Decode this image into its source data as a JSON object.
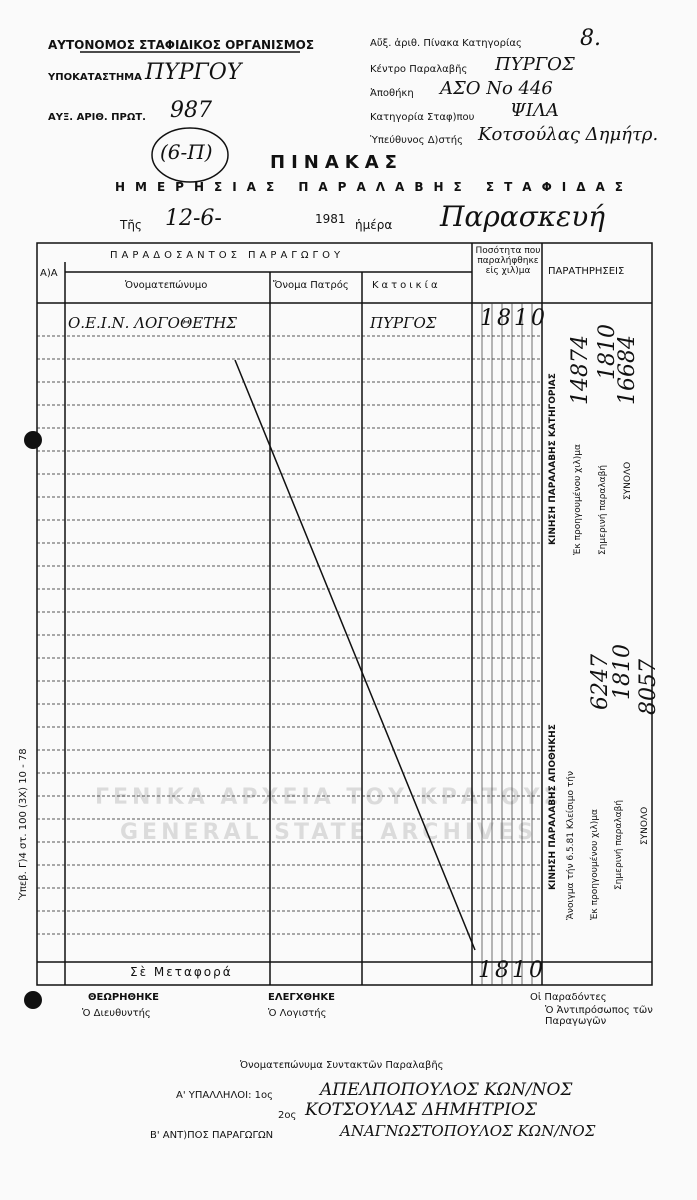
{
  "header": {
    "organization": "ΑΥΤΟΝΟΜΟΣ ΣΤΑΦΙΔΙΚΟΣ ΟΡΓΑΝΙΣΜΟΣ",
    "branch": {
      "label": "ΥΠΟΚΑΤΑΣΤΗΜΑ",
      "value": "ΠΥΡΓΟΥ"
    },
    "protocol": {
      "label": "ΑΥΞ. ΑΡΙΘ. ΠΡΩΤ.",
      "value": "987",
      "note": "(6-Π)"
    },
    "right": [
      {
        "label": "Αὔξ. ἀριθ. Πίνακα Κατηγορίας",
        "value": "8."
      },
      {
        "label": "Κέντρο Παραλαβῆς",
        "value": "ΠΥΡΓΟΣ"
      },
      {
        "label": "Ἀποθήκη",
        "value": "ΑΣΟ Νο 446"
      },
      {
        "label": "Κατηγορία Σταφ)που",
        "value": "ΨΙΛΑ"
      },
      {
        "label": "Ὑπεύθυνος Δ)στής",
        "value": "Κοτσούλας Δημήτρ."
      }
    ]
  },
  "title": {
    "main": "ΠΙΝΑΚΑΣ",
    "sub": "ΗΜΕΡΗΣΙΑΣ ΠΑΡΑΛΑΒΗΣ ΣΤΑΦΙΔΑΣ",
    "date_label": "Τῆς",
    "date": "12-6-",
    "year": "1981",
    "day_label": "ἡμέρα",
    "day": "Παρασκευή"
  },
  "table": {
    "headers": [
      "Α)Α",
      "ΠΑΡΑΔΟΣΑΝΤΟΣ ΠΑΡΑΓΩΓΟΥ",
      "Ὀνοματεπώνυμο",
      "Ὄνομα Πατρός",
      "Κατοικία",
      "Ποσότητα που παραλήφθηκε εἰς χιλ)μα",
      "ΠΑΡΑΤΗΡΗΣΕΙΣ"
    ],
    "rows": [
      [
        "Ο.Ε.Ι.Ν. ΛΟΓΟΘΕΤΗΣ",
        "ΠΥΡΓΟΣ",
        "1810"
      ]
    ]
  },
  "side": {
    "category": {
      "title": "ΚΙΝΗΣΗ ΠΑΡΑΛΑΒΗΣ ΚΑΤΗΓΟΡΙΑΣ",
      "prev_label": "Ἐκ προηγουμένου χιλ)μα",
      "prev": "14874",
      "today_label": "Σημερινή παραλαβή",
      "today": "1810",
      "total_label": "ΣΥΝΟΛΟ",
      "total": "16684"
    },
    "warehouse": {
      "title": "ΚΙΝΗΣΗ ΠΑΡΑΛΑΒΗΣ ΑΠΟΘΗΚΗΣ",
      "opening_label": "Ἄνοιγμα τήν 6.5.81 Κλείσιμο τήν",
      "prev_label": "Ἐκ προηγουμένου χιλ)μα",
      "prev": "6247",
      "today_label": "Σημερινή παραλαβή",
      "today": "1810",
      "total_label": "ΣΥΝΟΛΟ",
      "total": "8057"
    }
  },
  "margin_code": "Ὑπεβ. Γ)4 στ. 100 (3X) 10 - 78",
  "watermark": [
    "ΓΕΝΙΚΑ ΑΡΧΕΙΑ ΤΟΥ ΚΡΑΤΟΥΣ",
    "GENERAL STATE ARCHIVES"
  ],
  "footer": {
    "carry_label": "Σὲ Μεταφορά",
    "carry": "1810",
    "approved": "ΘΕΩΡΗΘΗΚΕ",
    "director": "Ὁ Διευθυντής",
    "checked": "ΕΛΕΓΧΘΗΚΕ",
    "accountant": "Ὁ Λογιστής",
    "deliverers": "Οἱ Παραδόντες",
    "representative": "Ὁ Ἀντιπρόσωπος τῶν Παραγωγῶν",
    "compilers": "Ὀνοματεπώνυμα Συντακτῶν Παραλαβῆς",
    "employees_label": "Α' ΥΠΑΛΛΗΛΟΙ: 1ος",
    "employee1": "ΑΠΕΛΠΟΠΟΥΛΟΣ ΚΩΝ/ΝΟΣ",
    "second_label": "2ος",
    "employee2": "ΚΟΤΣΟΥΛΑΣ ΔΗΜΗΤΡΙΟΣ",
    "rep_label": "Β' ΑΝΤ)ΠΟΣ ΠΑΡΑΓΩΓΩΝ",
    "rep": "ΑΝΑΓΝΩΣΤΟΠΟΥΛΟΣ ΚΩΝ/ΝΟΣ"
  }
}
